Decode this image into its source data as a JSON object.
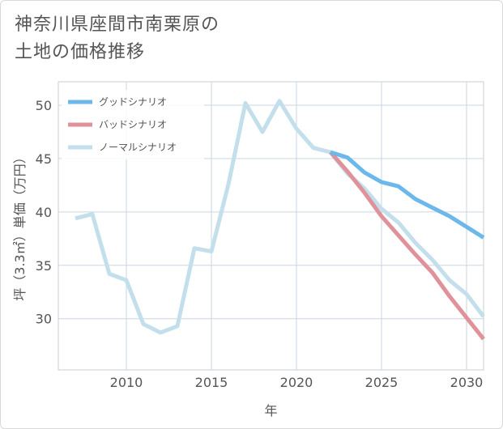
{
  "title": {
    "line1": "神奈川県座間市南栗原の",
    "line2": "土地の価格推移"
  },
  "chart_data": {
    "type": "line",
    "xlabel": "年",
    "ylabel": "坪（3.3㎡）単価（万円）",
    "xlim": [
      2006,
      2031
    ],
    "ylim": [
      25.2,
      52.2
    ],
    "x_ticks": [
      2010,
      2015,
      2020,
      2025,
      2030
    ],
    "y_ticks": [
      30,
      35,
      40,
      45,
      50
    ],
    "grid": true,
    "legend_position": "top-left",
    "series": [
      {
        "name": "グッドシナリオ",
        "color": "#6cb8ea",
        "x": [
          2022,
          2023,
          2024,
          2025,
          2026,
          2027,
          2028,
          2029,
          2030,
          2031
        ],
        "y": [
          45.6,
          45.1,
          43.7,
          42.8,
          42.4,
          41.2,
          40.4,
          39.6,
          38.6,
          37.6
        ]
      },
      {
        "name": "バッドシナリオ",
        "color": "#e0929a",
        "x": [
          2022,
          2023,
          2024,
          2025,
          2026,
          2027,
          2028,
          2029,
          2030,
          2031
        ],
        "y": [
          45.6,
          43.8,
          41.8,
          39.6,
          37.8,
          36.0,
          34.3,
          32.1,
          30.1,
          28.1
        ]
      },
      {
        "name": "ノーマルシナリオ",
        "color": "#c2dfeb",
        "x": [
          2007,
          2008,
          2009,
          2010,
          2011,
          2012,
          2013,
          2014,
          2015,
          2016,
          2017,
          2018,
          2019,
          2020,
          2021,
          2022,
          2023,
          2024,
          2025,
          2026,
          2027,
          2028,
          2029,
          2030,
          2031
        ],
        "y": [
          39.4,
          39.8,
          34.2,
          33.6,
          29.5,
          28.7,
          29.3,
          36.6,
          36.3,
          42.6,
          50.2,
          47.5,
          50.4,
          47.8,
          46.0,
          45.6,
          43.6,
          42.2,
          40.3,
          39.0,
          37.1,
          35.5,
          33.6,
          32.3,
          30.2
        ]
      }
    ]
  }
}
